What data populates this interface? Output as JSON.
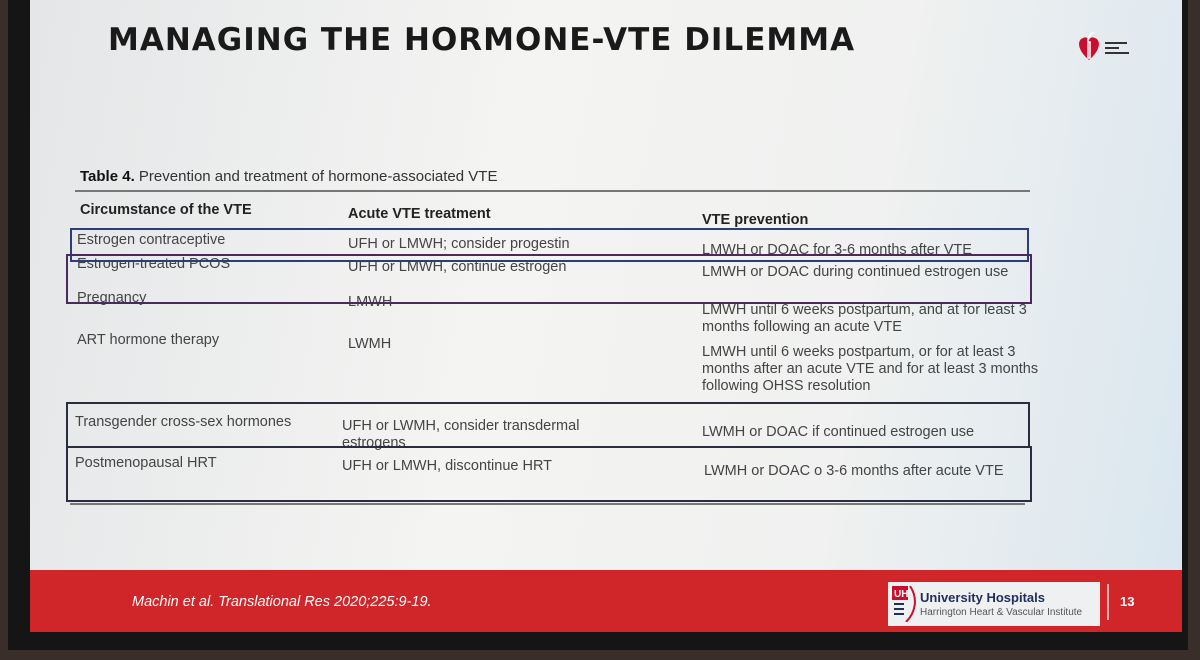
{
  "slide": {
    "title": "MANAGING THE HORMONE-VTE DILEMMA",
    "logo_text": "American Heart Association.",
    "table_label": "Table 4.",
    "table_caption": "Prevention and treatment of hormone-associated VTE",
    "columns": [
      "Circumstance of the VTE",
      "Acute VTE treatment",
      "VTE prevention"
    ],
    "rows": [
      {
        "circumstance": "Estrogen contraceptive",
        "acute": "UFH or LMWH; consider progestin",
        "prevention": "LMWH or DOAC for 3-6 months after VTE",
        "highlight": "blue"
      },
      {
        "circumstance": "Estrogen-treated PCOS",
        "acute": "UFH or LMWH, continue estrogen",
        "prevention": "LMWH or DOAC during continued estrogen use",
        "highlight": "purple"
      },
      {
        "circumstance": "Pregnancy",
        "acute": "LMWH",
        "prevention": "LMWH until 6 weeks postpartum, and at for least 3 months following an acute VTE"
      },
      {
        "circumstance": "ART hormone therapy",
        "acute": "LWMH",
        "prevention": "LMWH until 6 weeks postpartum, or for at least 3 months after an acute VTE and for at least 3 months following OHSS resolution"
      },
      {
        "circumstance": "Transgender cross-sex hormones",
        "acute": "UFH or LWMH, consider transdermal estrogens",
        "prevention": "LWMH or DOAC if continued estrogen use",
        "highlight": "dark"
      },
      {
        "circumstance": "Postmenopausal HRT",
        "acute": "UFH or LMWH, discontinue HRT",
        "prevention": "LWMH or DOAC o 3-6 months after acute VTE",
        "highlight": "dark"
      }
    ],
    "footer": {
      "citation": "Machin et al. Translational Res 2020;225:9-19.",
      "org_name": "University Hospitals",
      "org_sub": "Harrington Heart & Vascular Institute",
      "page_number": "13"
    },
    "colors": {
      "footer_red": "#d0262a",
      "box_blue": "#2c3e7a",
      "box_purple": "#4a2a5a",
      "box_dark": "#2a2d40"
    }
  }
}
